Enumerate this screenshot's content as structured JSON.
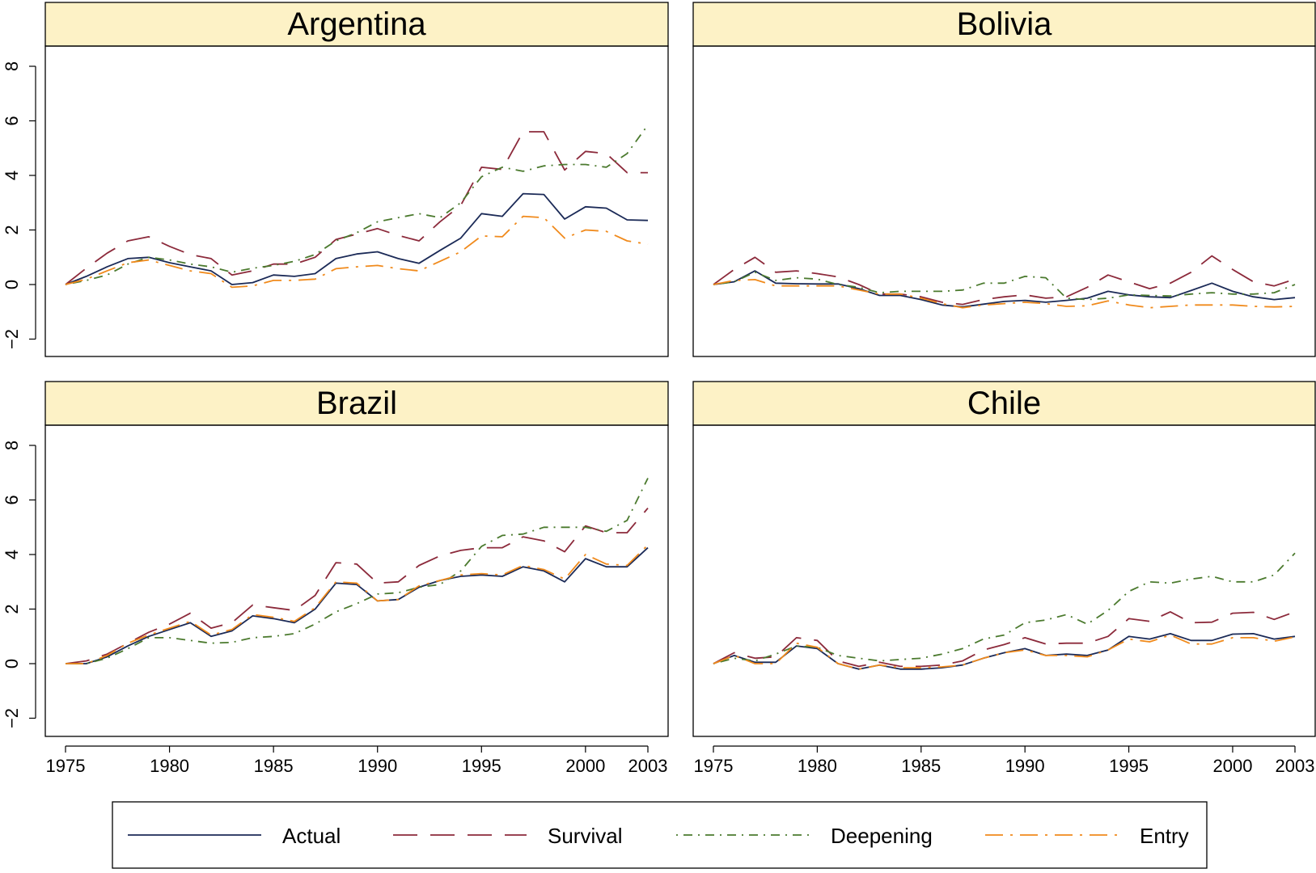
{
  "chart_data": {
    "type": "line",
    "layout": "2x2 facet grid with shared legend at bottom",
    "x_ticks": [
      "1975",
      "1980",
      "1985",
      "1990",
      "1995",
      "2000",
      "2003"
    ],
    "y_ticks": [
      "−2",
      "0",
      "2",
      "4",
      "6",
      "8"
    ],
    "xlim": [
      1975,
      2003
    ],
    "ylim": [
      -2.5,
      8.5
    ],
    "legend": {
      "position": "bottom",
      "entries": [
        {
          "name": "Actual",
          "color": "#1b2a57",
          "dash": "solid"
        },
        {
          "name": "Survival",
          "color": "#8c2a3b",
          "dash": "longdash"
        },
        {
          "name": "Deepening",
          "color": "#4b7a2e",
          "dash": "dotdash"
        },
        {
          "name": "Entry",
          "color": "#f08a1c",
          "dash": "longdashdot"
        }
      ]
    },
    "x": [
      1975,
      1976,
      1977,
      1978,
      1979,
      1980,
      1981,
      1982,
      1983,
      1984,
      1985,
      1986,
      1987,
      1988,
      1989,
      1990,
      1991,
      1992,
      1993,
      1994,
      1995,
      1996,
      1997,
      1998,
      1999,
      2000,
      2001,
      2002,
      2003
    ],
    "panels": [
      {
        "title": "Argentina",
        "series": [
          {
            "name": "Actual",
            "values": [
              0,
              0.3,
              0.65,
              0.95,
              1.0,
              0.8,
              0.65,
              0.5,
              0.0,
              0.07,
              0.35,
              0.3,
              0.4,
              0.95,
              1.12,
              1.2,
              0.95,
              0.78,
              1.25,
              1.7,
              2.6,
              2.5,
              3.33,
              3.3,
              2.4,
              2.85,
              2.8,
              2.37,
              2.35
            ]
          },
          {
            "name": "Survival",
            "values": [
              0,
              0.6,
              1.15,
              1.6,
              1.75,
              1.4,
              1.1,
              0.95,
              0.35,
              0.5,
              0.75,
              0.75,
              1.0,
              1.65,
              1.85,
              2.05,
              1.8,
              1.6,
              2.3,
              2.9,
              4.3,
              4.22,
              5.6,
              5.6,
              4.2,
              4.88,
              4.8,
              4.1,
              4.1
            ]
          },
          {
            "name": "Deepening",
            "values": [
              0,
              0.15,
              0.35,
              0.75,
              1.0,
              0.9,
              0.75,
              0.65,
              0.45,
              0.6,
              0.7,
              0.85,
              1.1,
              1.6,
              1.9,
              2.3,
              2.45,
              2.6,
              2.45,
              3.0,
              3.95,
              4.3,
              4.15,
              4.35,
              4.4,
              4.4,
              4.3,
              4.8,
              5.85
            ]
          },
          {
            "name": "Entry",
            "values": [
              0,
              0.2,
              0.5,
              0.8,
              0.9,
              0.7,
              0.5,
              0.4,
              -0.1,
              -0.05,
              0.15,
              0.15,
              0.2,
              0.58,
              0.65,
              0.7,
              0.58,
              0.5,
              0.85,
              1.2,
              1.78,
              1.75,
              2.5,
              2.45,
              1.7,
              2.0,
              1.95,
              1.6,
              1.48
            ]
          }
        ]
      },
      {
        "title": "Bolivia",
        "series": [
          {
            "name": "Actual",
            "values": [
              0,
              0.1,
              0.5,
              0.05,
              0.03,
              0.02,
              0.02,
              -0.15,
              -0.4,
              -0.4,
              -0.55,
              -0.75,
              -0.82,
              -0.72,
              -0.62,
              -0.58,
              -0.65,
              -0.58,
              -0.5,
              -0.25,
              -0.38,
              -0.45,
              -0.48,
              -0.22,
              0.05,
              -0.25,
              -0.45,
              -0.55,
              -0.48
            ]
          },
          {
            "name": "Survival",
            "values": [
              0,
              0.55,
              1.0,
              0.45,
              0.5,
              0.4,
              0.28,
              0.0,
              -0.35,
              -0.35,
              -0.45,
              -0.65,
              -0.73,
              -0.55,
              -0.45,
              -0.38,
              -0.5,
              -0.45,
              -0.1,
              0.35,
              0.1,
              -0.15,
              0.05,
              0.45,
              1.05,
              0.55,
              0.1,
              -0.05,
              0.2
            ]
          },
          {
            "name": "Deepening",
            "values": [
              0,
              0.1,
              0.45,
              0.15,
              0.25,
              0.2,
              0.0,
              -0.1,
              -0.3,
              -0.25,
              -0.25,
              -0.25,
              -0.2,
              0.05,
              0.05,
              0.3,
              0.25,
              -0.5,
              -0.55,
              -0.5,
              -0.38,
              -0.4,
              -0.42,
              -0.35,
              -0.3,
              -0.35,
              -0.35,
              -0.3,
              0.0
            ]
          },
          {
            "name": "Entry",
            "values": [
              0,
              0.15,
              0.18,
              -0.05,
              -0.05,
              -0.05,
              -0.05,
              -0.2,
              -0.35,
              -0.35,
              -0.5,
              -0.7,
              -0.85,
              -0.75,
              -0.7,
              -0.65,
              -0.7,
              -0.8,
              -0.78,
              -0.6,
              -0.75,
              -0.85,
              -0.8,
              -0.75,
              -0.75,
              -0.75,
              -0.8,
              -0.82,
              -0.8
            ]
          }
        ]
      },
      {
        "title": "Brazil",
        "series": [
          {
            "name": "Actual",
            "values": [
              0,
              0.0,
              0.25,
              0.65,
              1.0,
              1.25,
              1.5,
              1.0,
              1.2,
              1.75,
              1.65,
              1.5,
              2.0,
              2.95,
              2.9,
              2.3,
              2.35,
              2.8,
              3.05,
              3.2,
              3.25,
              3.2,
              3.55,
              3.4,
              3.0,
              3.85,
              3.55,
              3.55,
              4.25
            ]
          },
          {
            "name": "Survival",
            "values": [
              0,
              0.1,
              0.35,
              0.75,
              1.15,
              1.45,
              1.85,
              1.3,
              1.5,
              2.15,
              2.05,
              1.95,
              2.5,
              3.7,
              3.65,
              2.95,
              3.0,
              3.6,
              3.95,
              4.15,
              4.25,
              4.25,
              4.65,
              4.5,
              4.1,
              5.05,
              4.8,
              4.8,
              5.7
            ]
          },
          {
            "name": "Deepening",
            "values": [
              0,
              0.0,
              0.2,
              0.55,
              0.95,
              0.95,
              0.85,
              0.75,
              0.78,
              0.95,
              1.0,
              1.1,
              1.45,
              1.9,
              2.2,
              2.55,
              2.6,
              2.8,
              2.9,
              3.4,
              4.3,
              4.7,
              4.75,
              5.0,
              5.0,
              5.0,
              4.85,
              5.25,
              6.8
            ]
          },
          {
            "name": "Entry",
            "values": [
              0,
              0.0,
              0.3,
              0.75,
              1.05,
              1.3,
              1.55,
              1.05,
              1.25,
              1.8,
              1.7,
              1.55,
              2.05,
              3.0,
              2.95,
              2.3,
              2.35,
              2.85,
              3.05,
              3.25,
              3.3,
              3.25,
              3.6,
              3.45,
              3.1,
              4.0,
              3.65,
              3.6,
              4.35
            ]
          }
        ]
      },
      {
        "title": "Chile",
        "series": [
          {
            "name": "Actual",
            "values": [
              0,
              0.3,
              0.05,
              0.05,
              0.65,
              0.55,
              0.0,
              -0.2,
              -0.05,
              -0.2,
              -0.2,
              -0.15,
              -0.05,
              0.2,
              0.4,
              0.55,
              0.3,
              0.35,
              0.3,
              0.5,
              1.0,
              0.9,
              1.1,
              0.85,
              0.85,
              1.08,
              1.1,
              0.9,
              1.0
            ]
          },
          {
            "name": "Survival",
            "values": [
              0,
              0.4,
              0.2,
              0.25,
              0.95,
              0.85,
              0.1,
              -0.1,
              0.05,
              -0.1,
              -0.1,
              -0.05,
              0.1,
              0.5,
              0.7,
              0.95,
              0.72,
              0.75,
              0.75,
              1.0,
              1.65,
              1.55,
              1.9,
              1.5,
              1.52,
              1.85,
              1.88,
              1.62,
              1.9
            ]
          },
          {
            "name": "Deepening",
            "values": [
              0,
              0.2,
              0.1,
              0.35,
              0.65,
              0.6,
              0.3,
              0.2,
              0.1,
              0.15,
              0.2,
              0.35,
              0.55,
              0.9,
              1.05,
              1.5,
              1.6,
              1.8,
              1.45,
              1.95,
              2.65,
              3.0,
              2.95,
              3.1,
              3.2,
              3.0,
              3.0,
              3.25,
              4.05
            ]
          },
          {
            "name": "Entry",
            "values": [
              0,
              0.3,
              0.0,
              0.0,
              0.75,
              0.6,
              0.0,
              -0.2,
              -0.05,
              -0.15,
              -0.15,
              -0.12,
              -0.05,
              0.2,
              0.4,
              0.5,
              0.3,
              0.3,
              0.25,
              0.5,
              0.9,
              0.8,
              1.05,
              0.72,
              0.72,
              0.95,
              0.95,
              0.82,
              0.98
            ]
          }
        ]
      }
    ]
  }
}
